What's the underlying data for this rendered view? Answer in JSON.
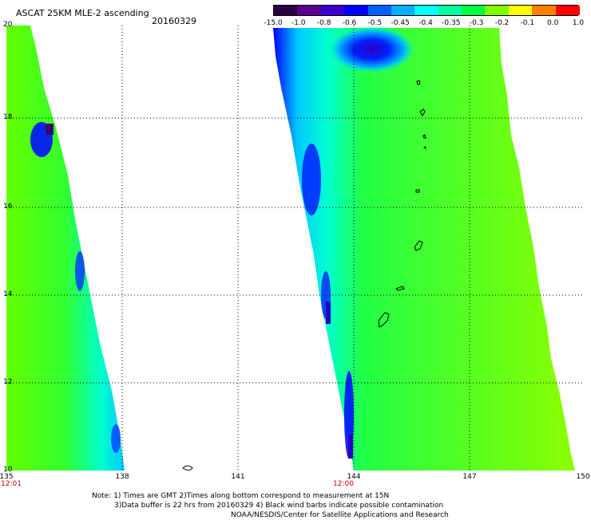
{
  "title": "ASCAT 25KM MLE-2 ascending",
  "date": "20160329",
  "colorbar": {
    "labels": [
      "-15.0",
      "-1.0",
      "-0.8",
      "-0.6",
      "-0.5",
      "-0.45",
      "-0.4",
      "-0.35",
      "-0.3",
      "-0.2",
      "-0.1",
      "0.0",
      "1.0"
    ],
    "colors": [
      "#2a0040",
      "#5a0090",
      "#3a00d0",
      "#0000ff",
      "#0060ff",
      "#00b0ff",
      "#00ffff",
      "#00ffa0",
      "#00ff40",
      "#80ff00",
      "#ffff00",
      "#ff8000",
      "#ff0000"
    ]
  },
  "axes": {
    "y_ticks": [
      "20",
      "18",
      "16",
      "14",
      "12",
      "10"
    ],
    "x_ticks": [
      "135",
      "138",
      "141",
      "144",
      "147",
      "150"
    ],
    "times": [
      "12:01",
      "12:00"
    ]
  },
  "notes": [
    "Note: 1) Times are GMT 2)Times along bottom correspond to measurement at 15N",
    "3)Data buffer is 22 hrs from 20160329 4) Black wind barbs indicate possible contamination",
    "NOAA/NESDIS/Center for Satellite Applications and Research"
  ]
}
